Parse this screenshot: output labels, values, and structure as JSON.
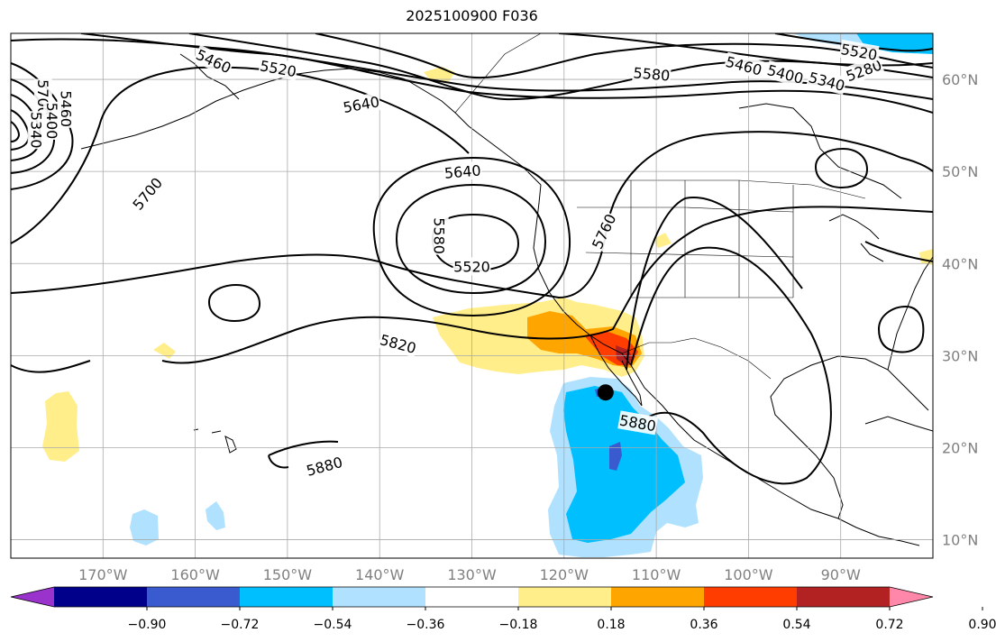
{
  "title": "2025100900 F036",
  "map": {
    "lon_range": [
      -180,
      -80
    ],
    "lat_range": [
      8,
      65
    ],
    "lon_ticks": [
      {
        "value": -170,
        "label": "170°W"
      },
      {
        "value": -160,
        "label": "160°W"
      },
      {
        "value": -150,
        "label": "150°W"
      },
      {
        "value": -140,
        "label": "140°W"
      },
      {
        "value": -130,
        "label": "130°W"
      },
      {
        "value": -120,
        "label": "120°W"
      },
      {
        "value": -110,
        "label": "110°W"
      },
      {
        "value": -100,
        "label": "100°W"
      },
      {
        "value": -90,
        "label": "90°W"
      }
    ],
    "lat_ticks": [
      {
        "value": 60,
        "label": "60°N"
      },
      {
        "value": 50,
        "label": "50°N"
      },
      {
        "value": 40,
        "label": "40°N"
      },
      {
        "value": 30,
        "label": "30°N"
      },
      {
        "value": 20,
        "label": "20°N"
      },
      {
        "value": 10,
        "label": "10°N"
      }
    ],
    "contour_labels": [
      {
        "text": "5460",
        "lon": -158,
        "lat": 62,
        "rot": 25
      },
      {
        "text": "5520",
        "lon": -151,
        "lat": 61.2,
        "rot": 10
      },
      {
        "text": "5640",
        "lon": -142,
        "lat": 57.3,
        "rot": -10
      },
      {
        "text": "5580",
        "lon": -110.5,
        "lat": 60.6,
        "rot": 5
      },
      {
        "text": "5460",
        "lon": -100.5,
        "lat": 61.5,
        "rot": 15
      },
      {
        "text": "5400",
        "lon": -96,
        "lat": 60.6,
        "rot": 15
      },
      {
        "text": "5340",
        "lon": -91.5,
        "lat": 59.8,
        "rot": 15
      },
      {
        "text": "5280",
        "lon": -87.5,
        "lat": 61,
        "rot": -20
      },
      {
        "text": "5520",
        "lon": -88,
        "lat": 63,
        "rot": 10
      },
      {
        "text": "5700",
        "lon": -176.5,
        "lat": 58,
        "rot": 90
      },
      {
        "text": "5460",
        "lon": -174,
        "lat": 56.8,
        "rot": 90
      },
      {
        "text": "5400",
        "lon": -175.5,
        "lat": 55.5,
        "rot": 90
      },
      {
        "text": "5340",
        "lon": -177.2,
        "lat": 54.5,
        "rot": 90
      },
      {
        "text": "5700",
        "lon": -165.2,
        "lat": 47.6,
        "rot": -50
      },
      {
        "text": "5640",
        "lon": -131,
        "lat": 50,
        "rot": -5
      },
      {
        "text": "5580",
        "lon": -133.5,
        "lat": 43,
        "rot": 90
      },
      {
        "text": "5520",
        "lon": -130,
        "lat": 39.7,
        "rot": 0
      },
      {
        "text": "5760",
        "lon": -115.7,
        "lat": 43.5,
        "rot": -65
      },
      {
        "text": "5820",
        "lon": -138,
        "lat": 31.3,
        "rot": 15
      },
      {
        "text": "5880",
        "lon": -112,
        "lat": 22.7,
        "rot": 10
      },
      {
        "text": "5880",
        "lon": -146,
        "lat": 18,
        "rot": -15
      }
    ],
    "marker": {
      "lon": -115.5,
      "lat": 26
    }
  },
  "colorbar": {
    "colors": [
      "#9933cc",
      "#00008b",
      "#3a5bcf",
      "#00bfff",
      "#b0e2ff",
      "#ffffff",
      "#ffee8a",
      "#ffa500",
      "#ff3d00",
      "#b22222",
      "#ff88aa"
    ],
    "tick_labels": [
      "−0.90",
      "−0.72",
      "−0.54",
      "−0.36",
      "−0.18",
      "0.18",
      "0.36",
      "0.54",
      "0.72",
      "0.90"
    ]
  }
}
